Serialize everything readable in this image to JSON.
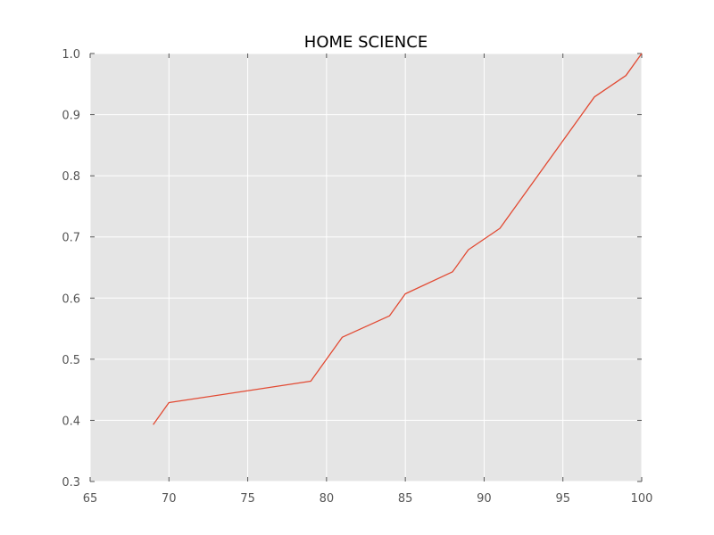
{
  "chart_data": {
    "type": "line",
    "title": "HOME SCIENCE",
    "xlabel": "",
    "ylabel": "",
    "xlim": [
      65,
      100
    ],
    "ylim": [
      0.3,
      1.0
    ],
    "xticks": [
      65,
      70,
      75,
      80,
      85,
      90,
      95,
      100
    ],
    "yticks": [
      0.3,
      0.4,
      0.5,
      0.6,
      0.7,
      0.8,
      0.9,
      1.0
    ],
    "grid": true,
    "legend": "none",
    "series": [
      {
        "x": [
          69,
          70,
          79,
          81,
          84,
          85,
          88,
          89,
          91,
          97,
          99,
          100
        ],
        "y": [
          0.393,
          0.429,
          0.464,
          0.536,
          0.571,
          0.607,
          0.643,
          0.679,
          0.714,
          0.929,
          0.964,
          1.0
        ]
      }
    ],
    "colors": {
      "line": "#e24a33",
      "plot_background": "#e5e5e5",
      "grid": "#ffffff",
      "tick_text": "#555555"
    }
  }
}
